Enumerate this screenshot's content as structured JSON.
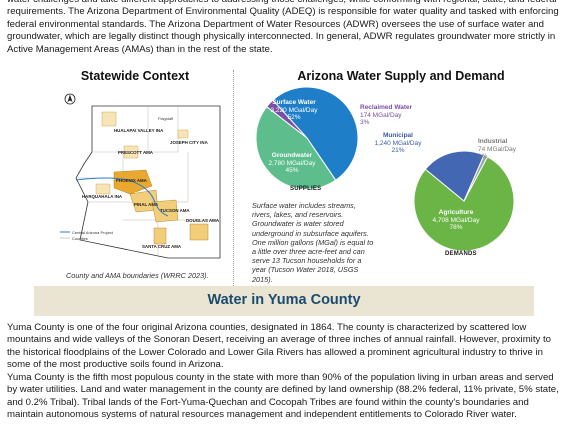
{
  "intro": {
    "text": "water challenges and take different approaches to addressing those challenges, while conforming with regional, state, and federal requirements. The Arizona Department of Environmental Quality (ADEQ) is responsible for water quality and tasked with enforcing federal environmental standards. The Arizona Department of Water Resources (ADWR) oversees the use of surface water and groundwater, which are legally distinct though physically interconnected. In general, ADWR regulates groundwater more strictly in Active Management Areas (AMAs) than in the rest of the state."
  },
  "left_column": {
    "title": "Statewide Context",
    "caption": "County and AMA boundaries (WRRC 2023).",
    "map_labels": {
      "hualapai": "HUALAPAI VALLEY INA",
      "joseph": "JOSEPH CITY INA",
      "prescott": "PRESCOTT AMA",
      "harquahala": "HARQUAHALA INA",
      "phoenix": "PHOENIX AMA",
      "pinal": "PINAL AMA",
      "tucson": "TUCSON AMA",
      "santacruz": "SANTA CRUZ AMA",
      "douglas": "DOUGLAS AMA",
      "flagstaff": "Flagstaff",
      "legend_project": "Central Arizona Project",
      "legend_counties": "Counties"
    }
  },
  "right_column": {
    "title": "Arizona Water Supply and Demand",
    "supplies_label": "SUPPLIES",
    "demands_label": "DEMANDS",
    "note": "Surface water includes streams, rivers, lakes, and reservoirs. Groundwater is water stored underground in subsurface aquifers. One million gallons (MGal) is equal to a little over three acre-feet and can serve 13 Tucson households for a year (Tucson Water 2018, USGS 2015)."
  },
  "chart_data": [
    {
      "type": "pie",
      "title": "",
      "category_label": "SUPPLIES",
      "categories": [
        "Surface Water",
        "Groundwater",
        "Reclaimed Water"
      ],
      "values": [
        3220,
        2780,
        174
      ],
      "value_labels": [
        "3,220 MGal/Day",
        "2,780 MGal/Day",
        "174 MGal/Day"
      ],
      "percent_labels": [
        "52%",
        "45%",
        "3%"
      ],
      "colors": [
        "#1e7ec8",
        "#5dbd8c",
        "#7b4fa5"
      ]
    },
    {
      "type": "pie",
      "title": "",
      "category_label": "DEMANDS",
      "categories": [
        "Agriculture",
        "Municipal",
        "Industrial"
      ],
      "values": [
        4708,
        1240,
        74
      ],
      "value_labels": [
        "4,708 MGal/Day",
        "1,240 MGal/Day",
        "74 MGal/Day"
      ],
      "percent_labels": [
        "78%",
        "21%",
        "1%"
      ],
      "colors": [
        "#6ab545",
        "#4467b3",
        "#9aa5ab"
      ]
    }
  ],
  "section": {
    "title": "Water in Yuma County",
    "paragraphs": [
      "Yuma County is one of the four original Arizona counties, designated in 1864. The county is characterized by scattered low mountains and wide valleys of the Sonoran Desert, receiving an average of three inches of annual rainfall. However, proximity to the historical floodplains of the Lower Colorado and Lower Gila Rivers has allowed a prominent agricultural industry to thrive in some of the most productive soils found in Arizona.",
      "Yuma County is the fifth most populous county in the state with more than 90% of the population living in urban areas and served by water utilities. Land and water management in the county are defined by land ownership (88.2% federal, 11% private, 5% state, and 0.2% Tribal). Tribal lands of the Fort-Yuma-Quechan and Cocopah Tribes are found within the county's boundaries and maintain autonomous systems of natural resources management and independent entitlements to Colorado River water."
    ]
  }
}
